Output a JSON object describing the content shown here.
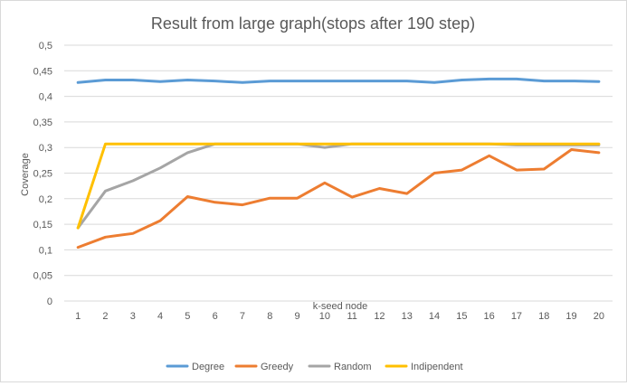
{
  "chart_data": {
    "type": "line",
    "title": "Result from large graph(stops after 190 step)",
    "xlabel": "k-seed node",
    "ylabel": "Coverage",
    "x": [
      1,
      2,
      3,
      4,
      5,
      6,
      7,
      8,
      9,
      10,
      11,
      12,
      13,
      14,
      15,
      16,
      17,
      18,
      19,
      20
    ],
    "x_tick_labels": [
      "1",
      "2",
      "3",
      "4",
      "5",
      "6",
      "7",
      "8",
      "9",
      "10",
      "11",
      "12",
      "13",
      "14",
      "15",
      "16",
      "17",
      "18",
      "19",
      "20"
    ],
    "ylim": [
      0,
      0.5
    ],
    "y_ticks": [
      0,
      0.05,
      0.1,
      0.15,
      0.2,
      0.25,
      0.3,
      0.35,
      0.4,
      0.45,
      0.5
    ],
    "y_tick_labels": [
      "0",
      "0,05",
      "0,1",
      "0,15",
      "0,2",
      "0,25",
      "0,3",
      "0,35",
      "0,4",
      "0,45",
      "0,5"
    ],
    "grid": true,
    "legend_position": "bottom",
    "series": [
      {
        "name": "Degree",
        "color": "#5b9bd5",
        "values": [
          0.427,
          0.432,
          0.432,
          0.429,
          0.432,
          0.43,
          0.427,
          0.43,
          0.43,
          0.43,
          0.43,
          0.43,
          0.43,
          0.427,
          0.432,
          0.434,
          0.434,
          0.43,
          0.43,
          0.429
        ]
      },
      {
        "name": "Greedy",
        "color": "#ed7d31",
        "values": [
          0.105,
          0.125,
          0.132,
          0.157,
          0.204,
          0.193,
          0.188,
          0.201,
          0.201,
          0.231,
          0.203,
          0.22,
          0.21,
          0.25,
          0.256,
          0.284,
          0.256,
          0.258,
          0.296,
          0.29
        ]
      },
      {
        "name": "Random",
        "color": "#a5a5a5",
        "values": [
          0.143,
          0.215,
          0.235,
          0.26,
          0.29,
          0.307,
          0.307,
          0.307,
          0.307,
          0.3,
          0.307,
          0.307,
          0.307,
          0.307,
          0.307,
          0.307,
          0.305,
          0.305,
          0.305,
          0.305
        ]
      },
      {
        "name": "Indipendent",
        "color": "#ffc000",
        "values": [
          0.143,
          0.307,
          0.307,
          0.307,
          0.307,
          0.307,
          0.307,
          0.307,
          0.307,
          0.307,
          0.307,
          0.307,
          0.307,
          0.307,
          0.307,
          0.307,
          0.307,
          0.307,
          0.307,
          0.307
        ]
      }
    ]
  }
}
